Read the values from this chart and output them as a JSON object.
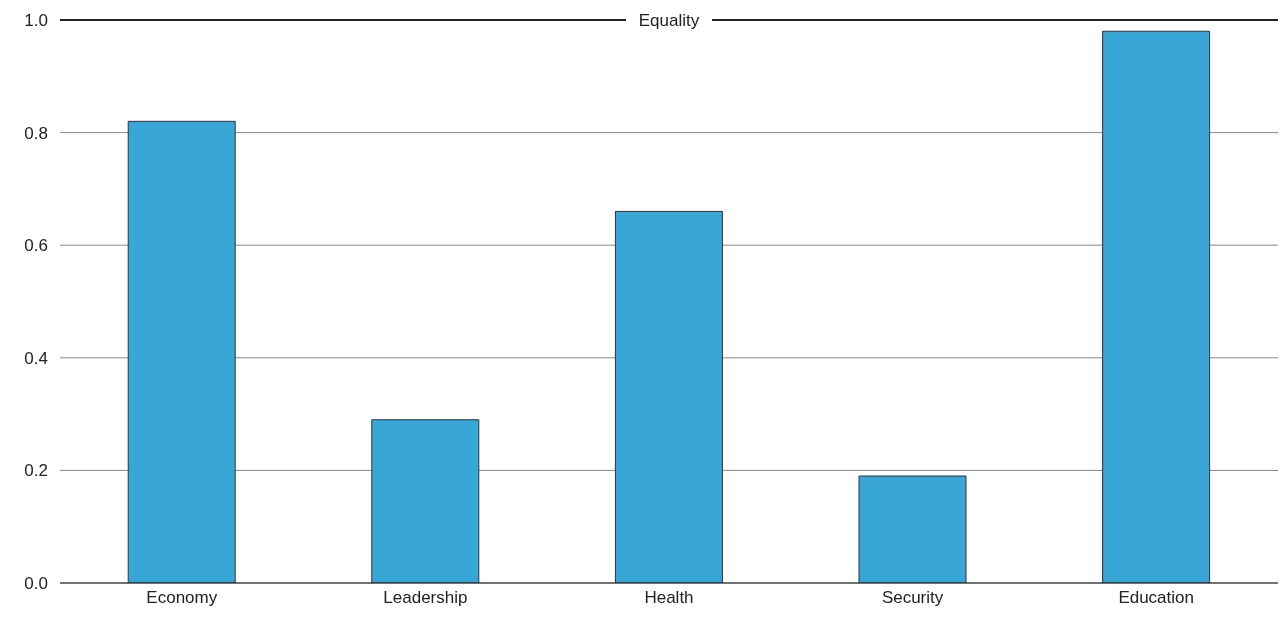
{
  "chart_data": {
    "type": "bar",
    "categories": [
      "Economy",
      "Leadership",
      "Health",
      "Security",
      "Education"
    ],
    "values": [
      0.82,
      0.29,
      0.66,
      0.19,
      0.98
    ],
    "color": "#38a6d6",
    "ylim": [
      0,
      1
    ],
    "yticks": [
      {
        "value": 0,
        "label": "0.0"
      },
      {
        "value": 0.2,
        "label": "0.2"
      },
      {
        "value": 0.4,
        "label": "0.4"
      },
      {
        "value": 0.6,
        "label": "0.6"
      },
      {
        "value": 0.8,
        "label": "0.8"
      },
      {
        "value": 1,
        "label": "1.0"
      }
    ],
    "grid": "y",
    "ref_lines": [
      {
        "axis": "y",
        "value": 1,
        "label": "Equality",
        "color": "#222222"
      }
    ]
  }
}
